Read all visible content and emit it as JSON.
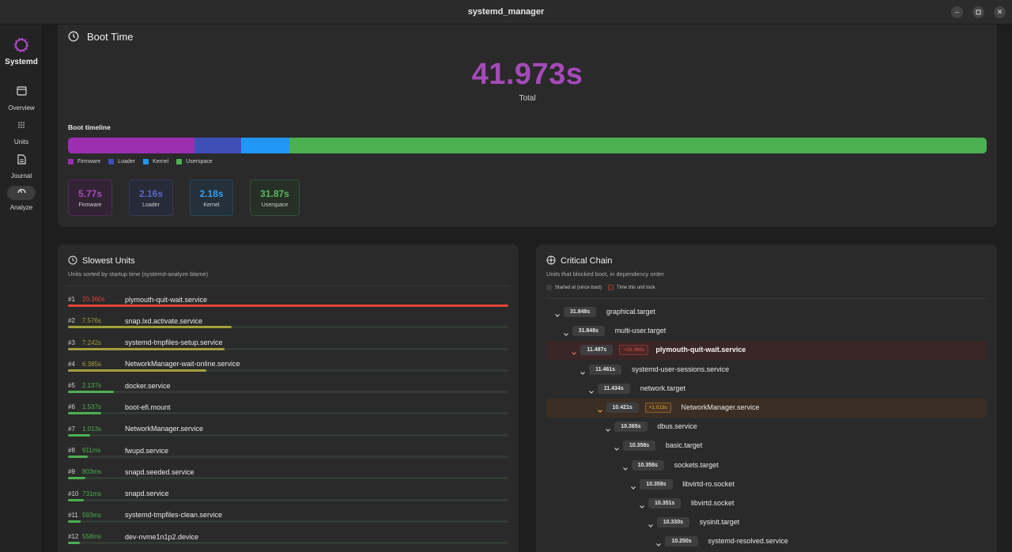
{
  "window": {
    "title": "systemd_manager"
  },
  "sidebar": {
    "brand": "Systemd",
    "items": [
      {
        "label": "Overview",
        "icon": "window-icon"
      },
      {
        "label": "Units",
        "icon": "grid-icon"
      },
      {
        "label": "Journal",
        "icon": "document-icon"
      },
      {
        "label": "Analyze",
        "icon": "gauge-icon",
        "active": true
      }
    ]
  },
  "boot": {
    "title": "Boot Time",
    "total_value": "41.973s",
    "total_label": "Total",
    "timeline_label": "Boot timeline",
    "segments": [
      {
        "name": "Firmware",
        "seconds": 5.77,
        "color": "#9b2fb0"
      },
      {
        "name": "Loader",
        "seconds": 2.16,
        "color": "#3f4fb5"
      },
      {
        "name": "Kernel",
        "seconds": 2.18,
        "color": "#2196f3"
      },
      {
        "name": "Userspace",
        "seconds": 31.87,
        "color": "#4caf50"
      }
    ],
    "phases": [
      {
        "value": "5.77s",
        "label": "Firmware",
        "color": "#a54ab8",
        "bg": "#322334",
        "border": "#4c2c52"
      },
      {
        "value": "2.16s",
        "label": "Loader",
        "color": "#5a67c8",
        "bg": "#272a38",
        "border": "#363b55"
      },
      {
        "value": "2.18s",
        "label": "Kernel",
        "color": "#3a9be8",
        "bg": "#24303a",
        "border": "#2d4658"
      },
      {
        "value": "31.87s",
        "label": "Userspace",
        "color": "#5cb860",
        "bg": "#263026",
        "border": "#35503a"
      }
    ]
  },
  "slowest": {
    "title": "Slowest Units",
    "subtitle": "Units sorted by startup time (systemd-analyze blame)",
    "rows": [
      {
        "rank": "#1",
        "duration": "20.360s",
        "name": "plymouth-quit-wait.service",
        "fraction": 1.0,
        "color": "#e0453a"
      },
      {
        "rank": "#2",
        "duration": "7.576s",
        "name": "snap.lxd.activate.service",
        "fraction": 0.372,
        "color": "#a0a03c"
      },
      {
        "rank": "#3",
        "duration": "7.242s",
        "name": "systemd-tmpfiles-setup.service",
        "fraction": 0.356,
        "color": "#a0a03c"
      },
      {
        "rank": "#4",
        "duration": "6.385s",
        "name": "NetworkManager-wait-online.service",
        "fraction": 0.314,
        "color": "#a0a03c"
      },
      {
        "rank": "#5",
        "duration": "2.137s",
        "name": "docker.service",
        "fraction": 0.105,
        "color": "#4caf50"
      },
      {
        "rank": "#6",
        "duration": "1.537s",
        "name": "boot-efi.mount",
        "fraction": 0.075,
        "color": "#4caf50"
      },
      {
        "rank": "#7",
        "duration": "1.013s",
        "name": "NetworkManager.service",
        "fraction": 0.05,
        "color": "#4caf50"
      },
      {
        "rank": "#8",
        "duration": "911ms",
        "name": "fwupd.service",
        "fraction": 0.045,
        "color": "#4caf50"
      },
      {
        "rank": "#9",
        "duration": "803ms",
        "name": "snapd.seeded.service",
        "fraction": 0.039,
        "color": "#4caf50"
      },
      {
        "rank": "#10",
        "duration": "731ms",
        "name": "snapd.service",
        "fraction": 0.036,
        "color": "#4caf50"
      },
      {
        "rank": "#11",
        "duration": "593ms",
        "name": "systemd-tmpfiles-clean.service",
        "fraction": 0.029,
        "color": "#4caf50"
      },
      {
        "rank": "#12",
        "duration": "558ms",
        "name": "dev-nvme1n1p2.device",
        "fraction": 0.027,
        "color": "#4caf50"
      }
    ]
  },
  "chain": {
    "title": "Critical Chain",
    "subtitle": "Units that blocked boot, in dependency order",
    "legend": [
      {
        "label": "Started at (since boot)",
        "color": "#3e3e3e",
        "border": "#3e3e3e"
      },
      {
        "label": "Time this unit took",
        "color": "#4a2a2a",
        "border": "#8a3a3a"
      }
    ],
    "rows": [
      {
        "depth": 0,
        "time": "31.848s",
        "name": "graphical.target"
      },
      {
        "depth": 1,
        "time": "31.848s",
        "name": "multi-user.target"
      },
      {
        "depth": 2,
        "time": "11.487s",
        "delta": "+20.360s",
        "name": "plymouth-quit-wait.service",
        "highlight": "red"
      },
      {
        "depth": 3,
        "time": "11.461s",
        "name": "systemd-user-sessions.service"
      },
      {
        "depth": 4,
        "time": "11.434s",
        "name": "network.target"
      },
      {
        "depth": 5,
        "time": "10.421s",
        "delta": "+1.013s",
        "name": "NetworkManager.service",
        "highlight": "orange"
      },
      {
        "depth": 6,
        "time": "10.365s",
        "name": "dbus.service"
      },
      {
        "depth": 7,
        "time": "10.358s",
        "name": "basic.target"
      },
      {
        "depth": 8,
        "time": "10.358s",
        "name": "sockets.target"
      },
      {
        "depth": 9,
        "time": "10.358s",
        "name": "libvirtd-ro.socket"
      },
      {
        "depth": 10,
        "time": "10.351s",
        "name": "libvirtd.socket"
      },
      {
        "depth": 11,
        "time": "10.330s",
        "name": "sysinit.target"
      },
      {
        "depth": 12,
        "time": "10.250s",
        "name": "systemd-resolved.service"
      }
    ]
  }
}
